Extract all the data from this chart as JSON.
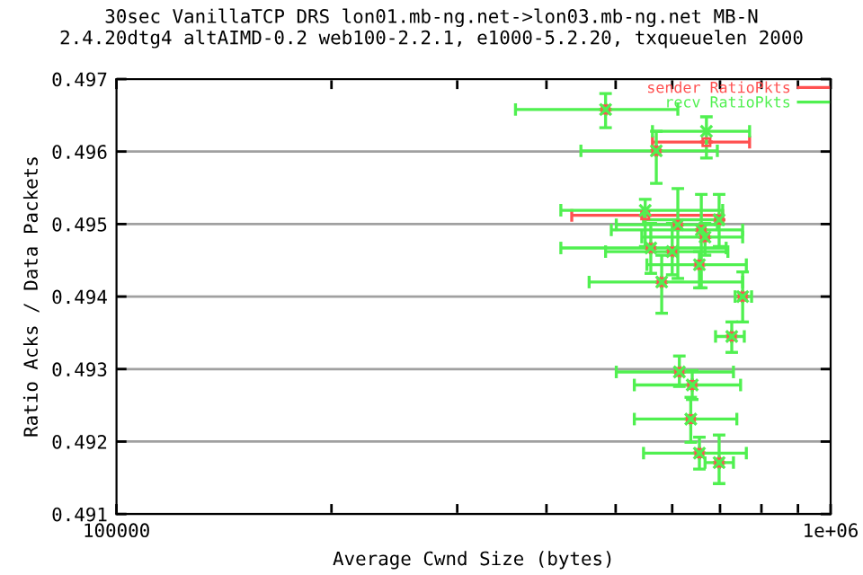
{
  "chart_data": {
    "type": "scatter",
    "title": "30sec VanillaTCP DRS lon01.mb-ng.net->lon03.mb-ng.net MB-N\n2.4.20dtg4 altAIMD-0.2 web100-2.2.1, e1000-5.2.20, txqueuelen 2000",
    "xlabel": "Average Cwnd Size (bytes)",
    "ylabel": "Ratio Acks / Data Packets",
    "log": "x",
    "grid": "y",
    "legend": "top right",
    "marker": "square",
    "xlim": [
      100000,
      1000000
    ],
    "xticks": [
      100000,
      {
        "value": 200000,
        "label": null
      },
      {
        "value": 300000,
        "label": null
      },
      {
        "value": 400000,
        "label": null
      },
      {
        "value": 500000,
        "label": null
      },
      {
        "value": 600000,
        "label": null
      },
      {
        "value": 700000,
        "label": null
      },
      {
        "value": 800000,
        "label": null
      },
      {
        "value": 900000,
        "label": null
      },
      {
        "value": 1000000,
        "label": "1e+06"
      }
    ],
    "ylim": [
      0.491,
      0.497
    ],
    "yticks": [
      0.491,
      0.492,
      0.493,
      0.494,
      0.495,
      0.496,
      0.497
    ],
    "series": [
      {
        "name": "sender RatioPkts",
        "color": "#ff5050",
        "x": [
          484000,
          670000,
          570000,
          550000,
          611000,
          659000,
          698000,
          667000,
          560000,
          600000,
          655000,
          580000,
          753000,
          727000,
          614000,
          640000,
          637000,
          655000,
          698000
        ],
        "values": [
          0.49658,
          0.49613,
          0.49601,
          0.49512,
          0.49499,
          0.49492,
          0.49506,
          0.49482,
          0.49467,
          0.49462,
          0.49444,
          0.4942,
          0.494,
          0.49345,
          0.49296,
          0.49278,
          0.49231,
          0.49184,
          0.49171
        ],
        "xerrors": [
          null,
          [
            563000,
            770000
          ],
          null,
          [
            434000,
            706000
          ],
          null,
          null,
          null,
          null,
          null,
          null,
          null,
          null,
          null,
          null,
          null,
          null,
          null,
          null,
          null
        ],
        "errors": [
          null,
          null,
          null,
          null,
          null,
          null,
          null,
          null,
          null,
          null,
          null,
          null,
          null,
          null,
          null,
          null,
          null,
          null,
          null
        ]
      },
      {
        "name": "recv RatioPkts",
        "color": "#50f050",
        "marker": "cross",
        "x": [
          484000,
          670000,
          570000,
          550000,
          611000,
          659000,
          698000,
          667000,
          560000,
          600000,
          655000,
          580000,
          753000,
          727000,
          614000,
          640000,
          637000,
          655000,
          698000
        ],
        "values": [
          0.49658,
          0.49628,
          0.49601,
          0.49519,
          0.49499,
          0.49492,
          0.49506,
          0.49482,
          0.49467,
          0.49462,
          0.49444,
          0.4942,
          0.494,
          0.49345,
          0.49296,
          0.49278,
          0.49231,
          0.49184,
          0.49171
        ],
        "xerrors": [
          [
            362000,
            611000
          ],
          [
            563000,
            770000
          ],
          [
            447000,
            694000
          ],
          [
            419000,
            706000
          ],
          [
            501000,
            694000
          ],
          [
            493000,
            753000
          ],
          [
            547000,
            706000
          ],
          [
            544000,
            753000
          ],
          [
            419000,
            714000
          ],
          [
            484000,
            718000
          ],
          [
            553000,
            762000
          ],
          [
            459000,
            753000
          ],
          [
            735000,
            775000
          ],
          [
            690000,
            757000
          ],
          [
            501000,
            731000
          ],
          [
            531000,
            748000
          ],
          [
            531000,
            739000
          ],
          [
            547000,
            762000
          ],
          [
            667000,
            731000
          ]
        ],
        "errors": [
          [
            0.49633,
            0.4968
          ],
          [
            0.49591,
            0.49648
          ],
          [
            0.49556,
            0.49628
          ],
          [
            0.49469,
            0.49534
          ],
          [
            0.49425,
            0.49549
          ],
          [
            0.49412,
            0.49541
          ],
          [
            0.49469,
            0.49541
          ],
          [
            0.49457,
            0.49501
          ],
          [
            0.49432,
            0.49501
          ],
          [
            0.4943,
            0.49501
          ],
          [
            0.49412,
            0.49462
          ],
          [
            0.49377,
            0.49457
          ],
          [
            0.49365,
            0.49434
          ],
          [
            0.49323,
            0.49365
          ],
          [
            0.49276,
            0.49318
          ],
          [
            0.49258,
            0.49298
          ],
          [
            0.49199,
            0.49261
          ],
          [
            0.49162,
            0.49206
          ],
          [
            0.49142,
            0.49209
          ]
        ]
      }
    ]
  }
}
